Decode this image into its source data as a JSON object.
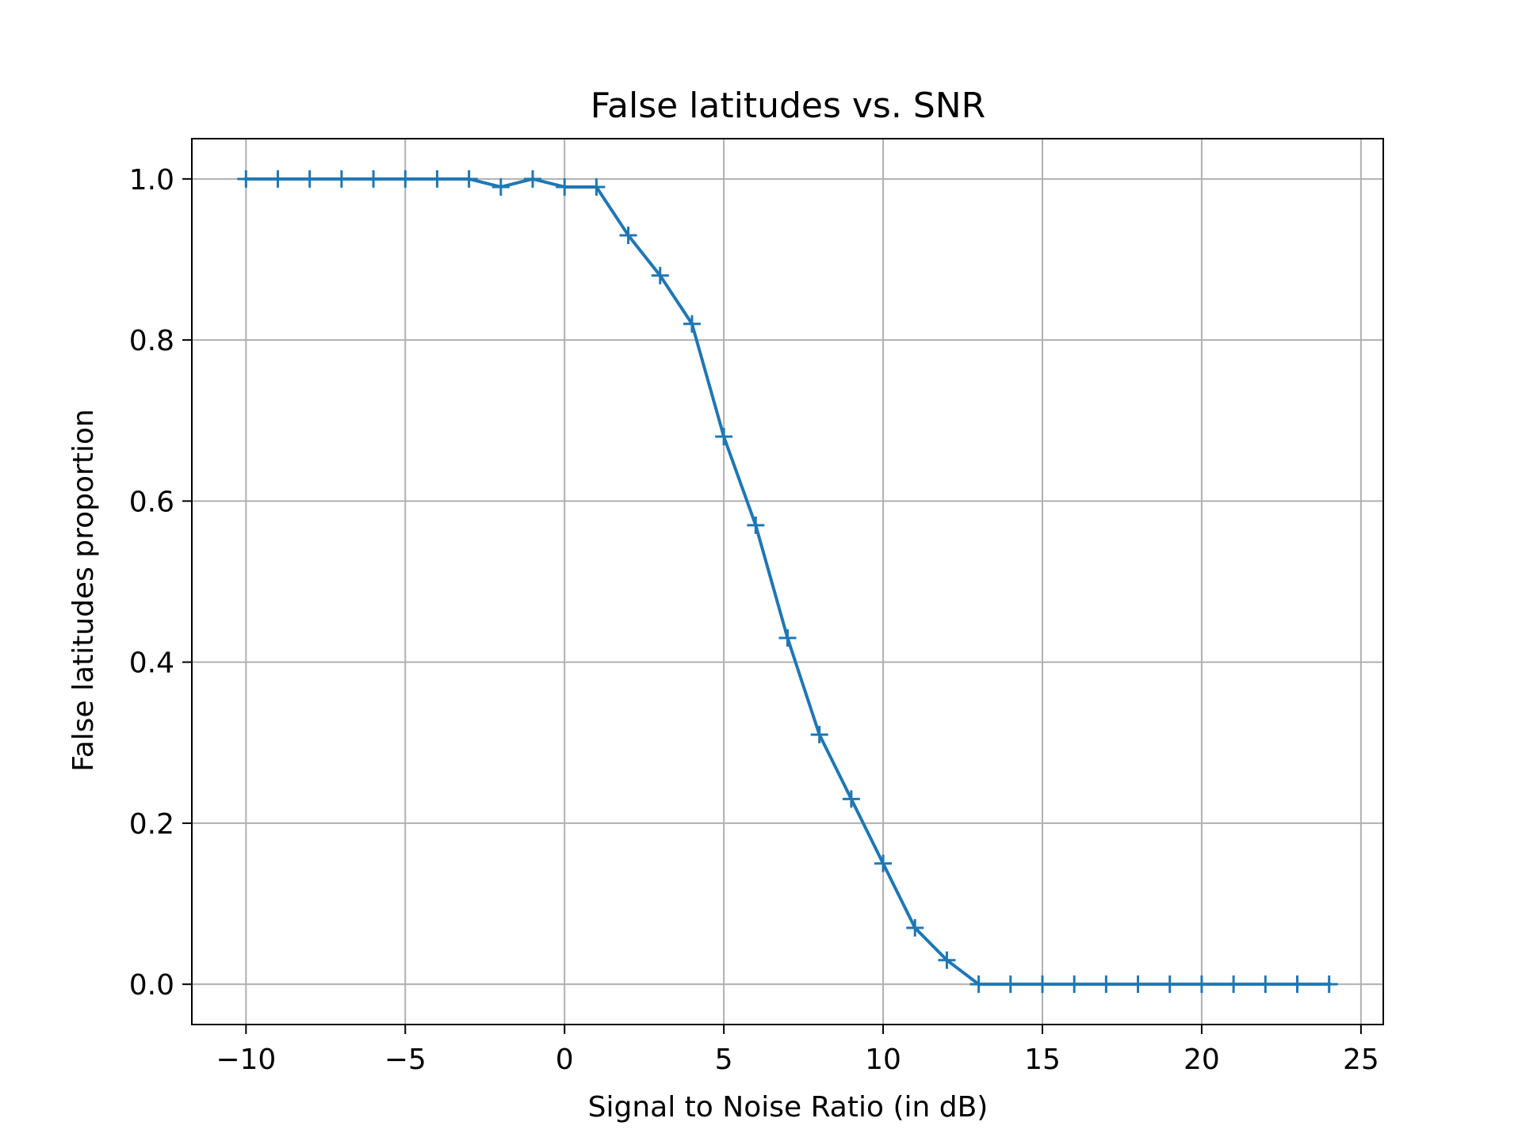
{
  "chart_data": {
    "type": "line",
    "title": "False latitudes vs. SNR",
    "xlabel": "Signal to Noise Ratio (in dB)",
    "ylabel": "False latitudes proportion",
    "xlim": [
      -11.7,
      25.7
    ],
    "ylim": [
      -0.05,
      1.05
    ],
    "xticks": [
      -10,
      -5,
      0,
      5,
      10,
      15,
      20,
      25
    ],
    "xtick_labels": [
      "−10",
      "−5",
      "0",
      "5",
      "10",
      "15",
      "20",
      "25"
    ],
    "yticks": [
      0.0,
      0.2,
      0.4,
      0.6,
      0.8,
      1.0
    ],
    "ytick_labels": [
      "0.0",
      "0.2",
      "0.4",
      "0.6",
      "0.8",
      "1.0"
    ],
    "grid": true,
    "marker": "+",
    "color": "#1f77b4",
    "series": [
      {
        "x": [
          -10,
          -9,
          -8,
          -7,
          -6,
          -5,
          -4,
          -3,
          -2,
          -1,
          0,
          1,
          2,
          3,
          4,
          5,
          6,
          7,
          8,
          9,
          10,
          11,
          12,
          13,
          14,
          15,
          16,
          17,
          18,
          19,
          20,
          21,
          22,
          23,
          24
        ],
        "y": [
          1.0,
          1.0,
          1.0,
          1.0,
          1.0,
          1.0,
          1.0,
          1.0,
          0.99,
          1.0,
          0.99,
          0.99,
          0.93,
          0.88,
          0.82,
          0.68,
          0.57,
          0.43,
          0.31,
          0.23,
          0.15,
          0.07,
          0.03,
          0.0,
          0.0,
          0.0,
          0.0,
          0.0,
          0.0,
          0.0,
          0.0,
          0.0,
          0.0,
          0.0,
          0.0
        ]
      }
    ]
  }
}
